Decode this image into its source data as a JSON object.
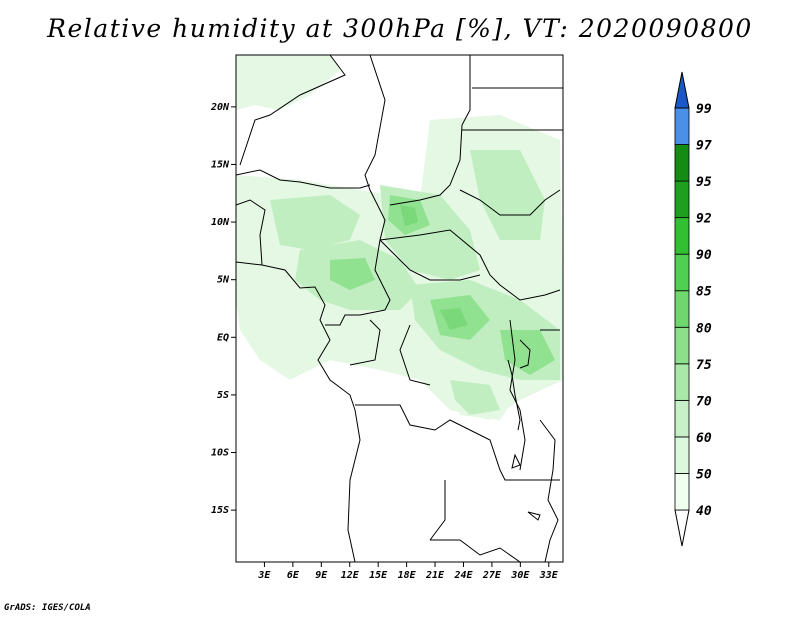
{
  "title": "Relative humidity at 300hPa [%], VT: 2020090800",
  "credit": "GrADS: IGES/COLA",
  "map": {
    "lat_ticks": [
      "20N",
      "15N",
      "10N",
      "5N",
      "EQ",
      "5S",
      "10S",
      "15S"
    ],
    "lat_values": [
      20,
      15,
      10,
      5,
      0,
      -5,
      -10,
      -15
    ],
    "lon_ticks": [
      "3E",
      "6E",
      "9E",
      "12E",
      "15E",
      "18E",
      "21E",
      "24E",
      "27E",
      "30E",
      "33E"
    ],
    "lon_values": [
      3,
      6,
      9,
      12,
      15,
      18,
      21,
      24,
      27,
      30,
      33
    ],
    "extent": {
      "lon_min": 0,
      "lon_max": 34.5,
      "lat_min": -19.5,
      "lat_max": 24.5
    }
  },
  "colorbar": {
    "levels": [
      "40",
      "50",
      "60",
      "70",
      "75",
      "80",
      "85",
      "90",
      "92",
      "95",
      "97",
      "99"
    ],
    "colors": [
      "#f0fff0",
      "#dcf8dc",
      "#c8f0c8",
      "#aae8aa",
      "#8ce08c",
      "#6ed86e",
      "#50d050",
      "#32c032",
      "#1ea01e",
      "#148c14",
      "#4a90e8",
      "#2c70d8",
      "#1a58c8"
    ],
    "under_color": "#ffffff",
    "over_color": "#1a58c8"
  }
}
